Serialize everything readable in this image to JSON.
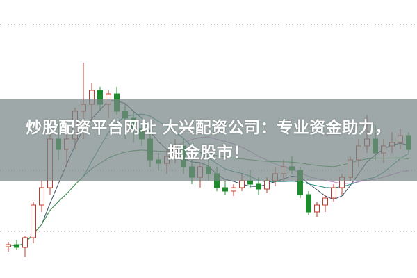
{
  "title": {
    "line1": "炒股配资平台网址 大兴配资公司：专业资金助力，",
    "line2": "掘金股市！"
  },
  "colors": {
    "up": "#c0392b",
    "down": "#1e8c2e",
    "ma5": "#34495e",
    "ma10": "#2a8c8c",
    "ma20": "#c48ad0",
    "ma60": "#3a9a4a",
    "grid": "#999999"
  },
  "chart_data": {
    "type": "candlestick",
    "grid": "dotted horizontal",
    "candles": [
      [
        45,
        52,
        38,
        48
      ],
      [
        48,
        55,
        40,
        44
      ],
      [
        44,
        60,
        30,
        58
      ],
      [
        58,
        110,
        50,
        105
      ],
      [
        105,
        140,
        95,
        130
      ],
      [
        130,
        210,
        120,
        200
      ],
      [
        200,
        225,
        170,
        185
      ],
      [
        185,
        215,
        160,
        200
      ],
      [
        200,
        245,
        185,
        240
      ],
      [
        240,
        310,
        200,
        250
      ],
      [
        250,
        280,
        225,
        270
      ],
      [
        270,
        275,
        240,
        250
      ],
      [
        250,
        270,
        230,
        265
      ],
      [
        265,
        275,
        235,
        240
      ],
      [
        240,
        250,
        200,
        230
      ],
      [
        230,
        240,
        195,
        215
      ],
      [
        215,
        225,
        190,
        200
      ],
      [
        200,
        215,
        160,
        170
      ],
      [
        170,
        180,
        155,
        165
      ],
      [
        165,
        185,
        150,
        175
      ],
      [
        175,
        200,
        165,
        190
      ],
      [
        190,
        200,
        150,
        160
      ],
      [
        160,
        170,
        135,
        145
      ],
      [
        145,
        165,
        130,
        160
      ],
      [
        160,
        175,
        140,
        150
      ],
      [
        150,
        160,
        125,
        130
      ],
      [
        130,
        140,
        120,
        125
      ],
      [
        125,
        135,
        118,
        130
      ],
      [
        130,
        150,
        125,
        140
      ],
      [
        140,
        155,
        130,
        135
      ],
      [
        135,
        145,
        120,
        128
      ],
      [
        128,
        145,
        122,
        140
      ],
      [
        140,
        160,
        132,
        150
      ],
      [
        150,
        170,
        140,
        160
      ],
      [
        160,
        175,
        150,
        155
      ],
      [
        155,
        160,
        115,
        120
      ],
      [
        120,
        125,
        90,
        95
      ],
      [
        95,
        110,
        88,
        105
      ],
      [
        105,
        120,
        95,
        115
      ],
      [
        115,
        135,
        110,
        130
      ],
      [
        130,
        150,
        120,
        145
      ],
      [
        145,
        175,
        140,
        170
      ],
      [
        170,
        200,
        160,
        190
      ],
      [
        190,
        235,
        180,
        200
      ],
      [
        200,
        220,
        170,
        180
      ],
      [
        180,
        200,
        165,
        190
      ],
      [
        190,
        210,
        180,
        195
      ],
      [
        195,
        215,
        185,
        205
      ],
      [
        205,
        210,
        180,
        185
      ]
    ],
    "moving_averages": [
      5,
      10,
      20,
      40
    ]
  }
}
